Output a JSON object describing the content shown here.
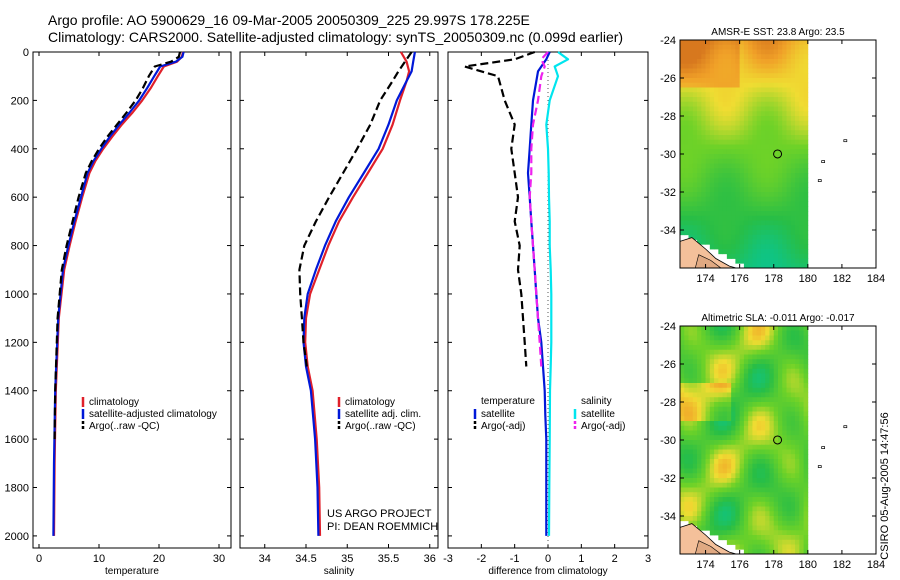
{
  "header": {
    "line1": "Argo profile: AO 5900629_16 09-Mar-2005 20050309_225 29.997S 178.225E",
    "line2": "Climatology: CARS2000. Satellite-adjusted climatology: synTS_20050309.nc (0.099d earlier)"
  },
  "credits": {
    "line1": "US ARGO PROJECT",
    "line2": "PI: DEAN ROEMMICH"
  },
  "timestamp": "CSIRO 05-Aug-2005 14:47:56",
  "colors": {
    "climatology": "#e0202a",
    "satellite": "#0018d8",
    "argo": "#000000",
    "salinity_satellite": "#00e5ee",
    "salinity_argo": "#ee22ee",
    "zero_line": "#555555"
  },
  "chart_data": [
    {
      "type": "line",
      "id": "temperature",
      "xlabel": "temperature",
      "xlim": [
        -1,
        32
      ],
      "ylim": [
        2050,
        0
      ],
      "xticks": [
        0,
        10,
        20,
        30
      ],
      "yticks": [
        0,
        200,
        400,
        600,
        800,
        1000,
        1200,
        1400,
        1600,
        1800,
        2000
      ],
      "legend": [
        "climatology",
        "satellite-adjusted climatology",
        "Argo(..raw -QC)"
      ],
      "legend_placement": "lower-right",
      "series": [
        {
          "name": "climatology",
          "color": "#e0202a",
          "dash": "solid",
          "x": [
            24.0,
            23.8,
            23.0,
            20.8,
            19.8,
            18.6,
            17.2,
            15.6,
            13.8,
            12.2,
            10.7,
            9.4,
            8.4,
            7.2,
            6.1,
            5.1,
            4.2,
            3.3,
            2.8,
            2.6,
            2.5
          ],
          "y": [
            0,
            20,
            40,
            60,
            100,
            150,
            200,
            250,
            300,
            350,
            400,
            450,
            500,
            600,
            700,
            800,
            900,
            1100,
            1400,
            1700,
            2000
          ]
        },
        {
          "name": "satellite-adjusted climatology",
          "color": "#0018d8",
          "dash": "solid",
          "x": [
            24.1,
            23.9,
            22.8,
            20.2,
            19.2,
            18.0,
            16.7,
            15.1,
            13.4,
            11.8,
            10.4,
            9.1,
            8.1,
            7.0,
            5.9,
            4.9,
            4.0,
            3.2,
            2.7,
            2.5,
            2.4
          ],
          "y": [
            0,
            20,
            40,
            60,
            100,
            150,
            200,
            250,
            300,
            350,
            400,
            450,
            500,
            600,
            700,
            800,
            900,
            1100,
            1400,
            1700,
            2000
          ]
        },
        {
          "name": "Argo(..raw -QC)",
          "color": "#000000",
          "dash": "dashed",
          "x": [
            23.5,
            23.3,
            22.0,
            19.3,
            18.3,
            17.3,
            16.1,
            14.6,
            13.0,
            11.4,
            10.0,
            8.8,
            7.8,
            6.6,
            5.6,
            4.6,
            3.8,
            3.1,
            2.7,
            2.6
          ],
          "y": [
            0,
            20,
            40,
            60,
            100,
            150,
            200,
            250,
            300,
            350,
            400,
            450,
            500,
            600,
            700,
            800,
            900,
            1100,
            1400,
            1600
          ]
        }
      ]
    },
    {
      "type": "line",
      "id": "salinity",
      "xlabel": "salinity",
      "xlim": [
        33.7,
        36.1
      ],
      "ylim": [
        2050,
        0
      ],
      "xticks": [
        34,
        34.5,
        35,
        35.5,
        36
      ],
      "xticklabels": [
        "34",
        "34.5",
        "35",
        "35.5",
        "36"
      ],
      "legend": [
        "climatology",
        "satellite adj. clim.",
        "Argo(..raw -QC)"
      ],
      "legend_placement": "lower-right",
      "series": [
        {
          "name": "climatology",
          "color": "#e0202a",
          "dash": "solid",
          "x": [
            35.65,
            35.72,
            35.75,
            35.72,
            35.64,
            35.55,
            35.43,
            35.25,
            35.07,
            34.9,
            34.77,
            34.66,
            34.55,
            34.5,
            34.49,
            34.52,
            34.58,
            34.63,
            34.66,
            34.67
          ],
          "y": [
            0,
            40,
            80,
            120,
            200,
            300,
            400,
            500,
            600,
            700,
            800,
            900,
            1000,
            1100,
            1200,
            1300,
            1400,
            1600,
            1800,
            2000
          ]
        },
        {
          "name": "satellite adj. clim.",
          "color": "#0018d8",
          "dash": "solid",
          "x": [
            35.82,
            35.8,
            35.78,
            35.72,
            35.6,
            35.5,
            35.38,
            35.2,
            35.02,
            34.86,
            34.73,
            34.62,
            34.52,
            34.48,
            34.47,
            34.5,
            34.56,
            34.61,
            34.64,
            34.65
          ],
          "y": [
            0,
            40,
            80,
            120,
            200,
            300,
            400,
            500,
            600,
            700,
            800,
            900,
            1000,
            1100,
            1200,
            1300,
            1400,
            1600,
            1800,
            2000
          ]
        },
        {
          "name": "Argo(..raw -QC)",
          "color": "#000000",
          "dash": "dashed",
          "x": [
            35.78,
            35.7,
            35.62,
            35.55,
            35.4,
            35.28,
            35.12,
            34.95,
            34.78,
            34.62,
            34.48,
            34.42,
            34.43,
            34.45,
            34.47,
            34.51
          ],
          "y": [
            0,
            40,
            80,
            120,
            200,
            300,
            400,
            500,
            600,
            700,
            800,
            900,
            1000,
            1100,
            1200,
            1300
          ]
        }
      ]
    },
    {
      "type": "line",
      "id": "difference",
      "xlabel": "difference from climatology",
      "xlim": [
        -3,
        3
      ],
      "ylim": [
        2050,
        0
      ],
      "xticks": [
        -3,
        -2,
        -1,
        0,
        1,
        2,
        3
      ],
      "legend": [
        "temperature",
        "satellite",
        "Argo(-adj)",
        "salinity",
        "satellite",
        "Argo(-adj)"
      ],
      "legend_placement": "lower",
      "series": [
        {
          "name": "temperature satellite",
          "color": "#0018d8",
          "dash": "solid",
          "x": [
            0.05,
            -0.05,
            -0.3,
            -0.45,
            -0.5,
            -0.55,
            -0.6,
            -0.55,
            -0.5,
            -0.45,
            -0.4,
            -0.35,
            -0.3,
            -0.2,
            -0.15,
            -0.1,
            -0.08,
            -0.05,
            -0.05,
            -0.05
          ],
          "y": [
            0,
            30,
            80,
            200,
            300,
            400,
            500,
            600,
            700,
            800,
            900,
            1000,
            1100,
            1200,
            1300,
            1400,
            1500,
            1600,
            1800,
            2000
          ]
        },
        {
          "name": "temperature Argo(-adj)",
          "color": "#000000",
          "dash": "dashed",
          "x": [
            -0.4,
            -1.0,
            -2.5,
            -1.5,
            -1.3,
            -1.0,
            -1.1,
            -1.0,
            -0.9,
            -1.0,
            -0.85,
            -0.9,
            -0.8,
            -0.75,
            -0.7,
            -0.65
          ],
          "y": [
            0,
            30,
            60,
            100,
            200,
            300,
            400,
            500,
            600,
            700,
            800,
            900,
            1000,
            1100,
            1200,
            1300
          ]
        },
        {
          "name": "salinity satellite",
          "color": "#00e5ee",
          "dash": "solid",
          "x": [
            0.3,
            0.6,
            0.2,
            0.3,
            0.05,
            -0.05,
            0.0,
            0.02,
            0.03,
            0.05,
            0.05,
            0.08,
            0.1,
            0.1,
            0.1,
            0.08,
            0.06,
            0.05,
            0.04,
            0.03
          ],
          "y": [
            0,
            30,
            60,
            100,
            200,
            300,
            400,
            500,
            600,
            700,
            800,
            900,
            1000,
            1100,
            1200,
            1300,
            1400,
            1600,
            1800,
            2000
          ]
        },
        {
          "name": "salinity Argo(-adj)",
          "color": "#ee22ee",
          "dash": "dashed",
          "x": [
            0.0,
            -0.2,
            -0.1,
            -0.2,
            -0.3,
            -0.45,
            -0.5,
            -0.5,
            -0.55,
            -0.5,
            -0.45,
            -0.4,
            -0.35,
            -0.3,
            -0.25,
            -0.2
          ],
          "y": [
            0,
            30,
            60,
            100,
            200,
            300,
            400,
            500,
            600,
            700,
            800,
            900,
            1000,
            1100,
            1200,
            1300
          ]
        }
      ]
    },
    {
      "type": "heatmap",
      "id": "sst-map",
      "title": "AMSR-E SST: 23.8 Argo: 23.5",
      "xlim": [
        172.5,
        184
      ],
      "ylim": [
        -36,
        -24
      ],
      "xticks": [
        174,
        176,
        178,
        180,
        182,
        184
      ],
      "yticks": [
        -24,
        -26,
        -28,
        -30,
        -32,
        -34
      ],
      "data_extent_lon": [
        172.5,
        180
      ],
      "profile_location": {
        "lon": 178.225,
        "lat": -29.997
      }
    },
    {
      "type": "heatmap",
      "id": "sla-map",
      "title": "Altimetric SLA: -0.011 Argo: -0.017",
      "xlim": [
        172.5,
        184
      ],
      "ylim": [
        -36,
        -24
      ],
      "xticks": [
        174,
        176,
        178,
        180,
        182,
        184
      ],
      "yticks": [
        -24,
        -26,
        -28,
        -30,
        -32,
        -34
      ],
      "data_extent_lon": [
        172.5,
        180
      ],
      "profile_location": {
        "lon": 178.225,
        "lat": -29.997
      }
    }
  ]
}
